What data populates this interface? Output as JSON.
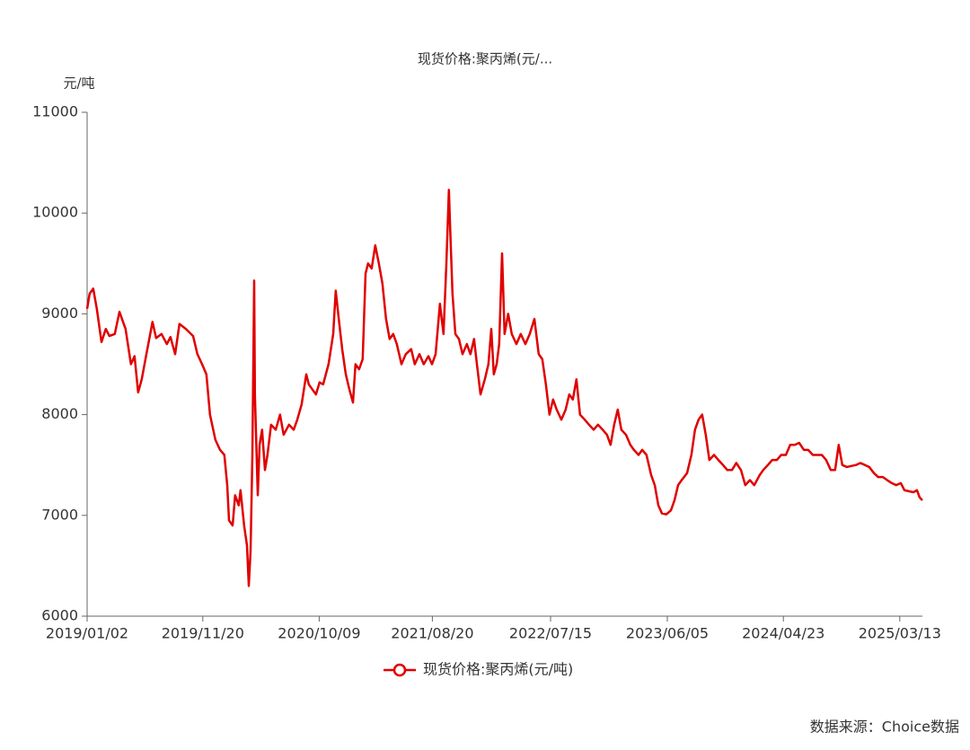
{
  "chart_data": {
    "type": "line",
    "title": "现货价格:聚丙烯(元/...",
    "y_axis_label": "元/吨",
    "source": "数据来源：Choice数据",
    "x": [
      "2019/01/02",
      "2019/01/09",
      "2019/01/19",
      "2019/01/29",
      "2019/02/11",
      "2019/02/23",
      "2019/03/05",
      "2019/03/20",
      "2019/04/02",
      "2019/04/19",
      "2019/05/04",
      "2019/05/14",
      "2019/05/24",
      "2019/06/03",
      "2019/06/16",
      "2019/07/03",
      "2019/07/13",
      "2019/07/28",
      "2019/08/12",
      "2019/08/22",
      "2019/09/04",
      "2019/09/16",
      "2019/10/04",
      "2019/10/24",
      "2019/11/05",
      "2019/11/18",
      "2019/11/30",
      "2019/12/10",
      "2019/12/25",
      "2020/01/07",
      "2020/01/19",
      "2020/01/27",
      "2020/02/01",
      "2020/02/11",
      "2020/02/18",
      "2020/02/28",
      "2020/03/04",
      "2020/03/14",
      "2020/03/22",
      "2020/03/27",
      "2020/04/01",
      "2020/04/06",
      "2020/04/11",
      "2020/04/13",
      "2020/04/21",
      "2020/04/26",
      "2020/05/03",
      "2020/05/11",
      "2020/05/18",
      "2020/05/28",
      "2020/06/10",
      "2020/06/22",
      "2020/07/02",
      "2020/07/17",
      "2020/07/30",
      "2020/08/09",
      "2020/08/21",
      "2020/09/03",
      "2020/09/10",
      "2020/09/20",
      "2020/09/30",
      "2020/10/10",
      "2020/10/20",
      "2020/11/04",
      "2020/11/17",
      "2020/11/24",
      "2020/12/04",
      "2020/12/12",
      "2020/12/22",
      "2021/01/01",
      "2021/01/11",
      "2021/01/18",
      "2021/01/28",
      "2021/02/07",
      "2021/02/15",
      "2021/02/22",
      "2021/03/04",
      "2021/03/14",
      "2021/03/24",
      "2021/04/03",
      "2021/04/13",
      "2021/04/23",
      "2021/05/03",
      "2021/05/13",
      "2021/05/26",
      "2021/06/07",
      "2021/06/22",
      "2021/07/02",
      "2021/07/15",
      "2021/07/27",
      "2021/08/09",
      "2021/08/19",
      "2021/08/29",
      "2021/09/10",
      "2021/09/20",
      "2021/09/28",
      "2021/10/05",
      "2021/10/10",
      "2021/10/15",
      "2021/10/23",
      "2021/11/02",
      "2021/11/12",
      "2021/11/24",
      "2021/12/04",
      "2021/12/14",
      "2021/12/22",
      "2022/01/01",
      "2022/01/13",
      "2022/01/23",
      "2022/01/31",
      "2022/02/07",
      "2022/02/15",
      "2022/02/22",
      "2022/03/02",
      "2022/03/09",
      "2022/03/19",
      "2022/03/29",
      "2022/04/11",
      "2022/04/23",
      "2022/05/06",
      "2022/05/18",
      "2022/05/31",
      "2022/06/12",
      "2022/06/22",
      "2022/07/02",
      "2022/07/12",
      "2022/07/22",
      "2022/08/01",
      "2022/08/14",
      "2022/08/26",
      "2022/09/05",
      "2022/09/15",
      "2022/09/25",
      "2022/10/05",
      "2022/10/18",
      "2022/10/30",
      "2022/11/12",
      "2022/11/24",
      "2022/12/07",
      "2022/12/19",
      "2022/12/29",
      "2023/01/08",
      "2023/01/18",
      "2023/01/28",
      "2023/02/10",
      "2023/02/22",
      "2023/03/04",
      "2023/03/17",
      "2023/03/27",
      "2023/04/08",
      "2023/04/21",
      "2023/05/01",
      "2023/05/11",
      "2023/05/21",
      "2023/06/02",
      "2023/06/15",
      "2023/06/25",
      "2023/07/05",
      "2023/07/15",
      "2023/07/30",
      "2023/08/11",
      "2023/08/21",
      "2023/08/31",
      "2023/09/10",
      "2023/09/20",
      "2023/09/30",
      "2023/10/13",
      "2023/10/25",
      "2023/11/07",
      "2023/11/19",
      "2023/12/02",
      "2023/12/14",
      "2023/12/27",
      "2024/01/08",
      "2024/01/21",
      "2024/02/02",
      "2024/02/17",
      "2024/02/27",
      "2024/03/11",
      "2024/03/23",
      "2024/04/05",
      "2024/04/17",
      "2024/04/30",
      "2024/05/12",
      "2024/05/25",
      "2024/06/06",
      "2024/06/19",
      "2024/07/01",
      "2024/07/14",
      "2024/07/26",
      "2024/08/08",
      "2024/08/20",
      "2024/09/02",
      "2024/09/14",
      "2024/09/24",
      "2024/10/04",
      "2024/10/17",
      "2024/10/29",
      "2024/11/11",
      "2024/11/23",
      "2024/12/06",
      "2024/12/18",
      "2024/12/31",
      "2025/01/12",
      "2025/01/25",
      "2025/02/06",
      "2025/02/19",
      "2025/03/03",
      "2025/03/16",
      "2025/03/26",
      "2025/04/07",
      "2025/04/20",
      "2025/04/30",
      "2025/05/07",
      "2025/05/15"
    ],
    "series": [
      {
        "name": "现货价格:聚丙烯(元/吨)",
        "color": "#e00000",
        "values": [
          9050,
          9200,
          9250,
          9050,
          8720,
          8850,
          8780,
          8800,
          9020,
          8850,
          8500,
          8580,
          8220,
          8350,
          8600,
          8920,
          8760,
          8800,
          8700,
          8770,
          8600,
          8900,
          8850,
          8780,
          8600,
          8500,
          8400,
          8000,
          7750,
          7650,
          7600,
          7300,
          6950,
          6900,
          7200,
          7100,
          7250,
          6900,
          6700,
          6300,
          6650,
          7600,
          9330,
          8200,
          7200,
          7700,
          7850,
          7450,
          7600,
          7900,
          7850,
          8000,
          7800,
          7900,
          7850,
          7950,
          8100,
          8400,
          8300,
          8250,
          8200,
          8320,
          8300,
          8500,
          8800,
          9230,
          8900,
          8650,
          8400,
          8250,
          8120,
          8500,
          8450,
          8550,
          9400,
          9500,
          9450,
          9680,
          9500,
          9300,
          8950,
          8750,
          8800,
          8700,
          8500,
          8600,
          8650,
          8500,
          8600,
          8500,
          8580,
          8500,
          8600,
          9100,
          8800,
          9500,
          10230,
          9700,
          9200,
          8800,
          8750,
          8600,
          8700,
          8600,
          8750,
          8500,
          8200,
          8350,
          8500,
          8850,
          8400,
          8500,
          8700,
          9600,
          8800,
          9000,
          8800,
          8700,
          8800,
          8700,
          8800,
          8950,
          8600,
          8550,
          8300,
          8000,
          8150,
          8050,
          7950,
          8050,
          8200,
          8150,
          8350,
          8000,
          7950,
          7900,
          7850,
          7900,
          7850,
          7800,
          7700,
          7900,
          8050,
          7850,
          7800,
          7700,
          7650,
          7600,
          7650,
          7600,
          7400,
          7300,
          7100,
          7020,
          7010,
          7050,
          7150,
          7300,
          7350,
          7420,
          7600,
          7850,
          7950,
          8000,
          7800,
          7550,
          7600,
          7550,
          7500,
          7450,
          7450,
          7520,
          7450,
          7300,
          7350,
          7300,
          7400,
          7450,
          7500,
          7550,
          7550,
          7600,
          7600,
          7700,
          7700,
          7720,
          7650,
          7650,
          7600,
          7600,
          7600,
          7550,
          7450,
          7450,
          7700,
          7500,
          7480,
          7490,
          7500,
          7520,
          7500,
          7480,
          7420,
          7380,
          7380,
          7350,
          7320,
          7300,
          7320,
          7250,
          7240,
          7230,
          7250,
          7180,
          7150
        ]
      }
    ],
    "xlim": [
      "2019/01/02",
      "2025/05/15"
    ],
    "xticks": [
      "2019/01/02",
      "2019/11/20",
      "2020/10/09",
      "2021/08/20",
      "2022/07/15",
      "2023/06/05",
      "2024/04/23",
      "2025/03/13"
    ],
    "ylim": [
      6000,
      11000
    ],
    "yticks": [
      6000,
      7000,
      8000,
      9000,
      10000,
      11000
    ],
    "grid": false,
    "legend": "bottom"
  }
}
